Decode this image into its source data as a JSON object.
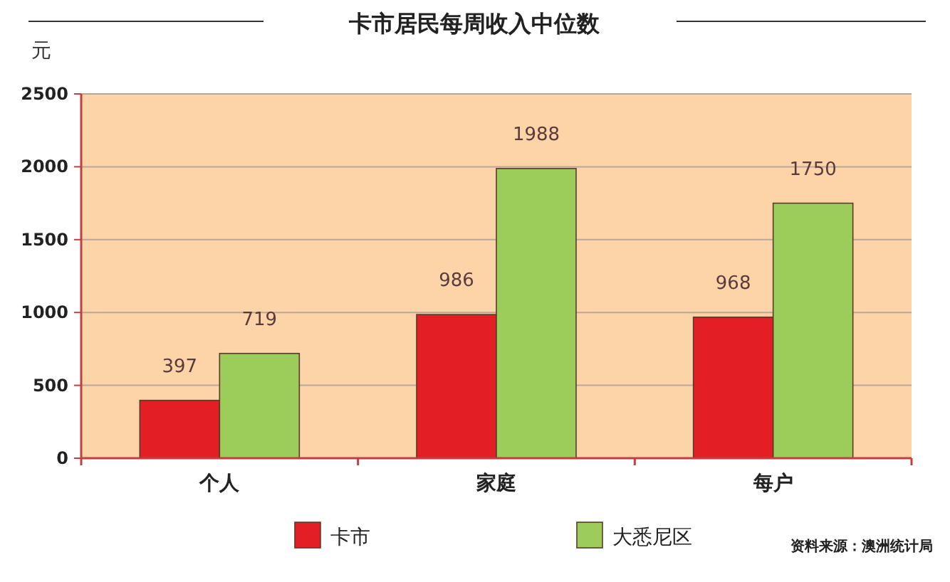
{
  "chart_data": {
    "type": "bar",
    "title": "卡市居民每周收入中位数",
    "ylabel": "元",
    "categories": [
      "个人",
      "家庭",
      "每户"
    ],
    "series": [
      {
        "name": "卡市",
        "color": "#e31e24",
        "values": [
          397,
          986,
          968
        ]
      },
      {
        "name": "大悉尼区",
        "color": "#9ccc5a",
        "values": [
          719,
          1988,
          1750
        ]
      }
    ],
    "ylim": [
      0,
      2500
    ],
    "yticks": [
      0,
      500,
      1000,
      1500,
      2000,
      2500
    ],
    "grid": "y",
    "data_labels": true,
    "legend": "bottom",
    "annotations": [
      "资料来源：澳洲统计局"
    ]
  }
}
